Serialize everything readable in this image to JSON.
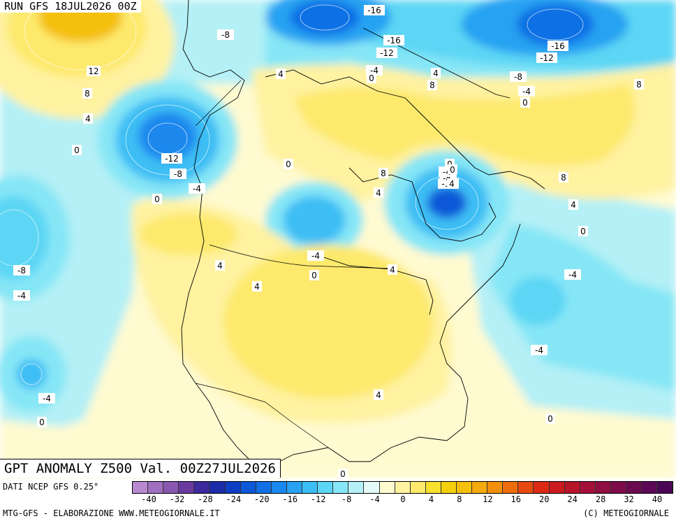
{
  "run_label": "RUN GFS 18JUL2026 00Z",
  "map_title": "GPT ANOMALY Z500 Val. 00Z27JUL2026",
  "source_label": "DATI NCEP GFS 0.25°",
  "credit_label": "MTG-GFS - ELABORAZIONE WWW.METEOGIORNALE.IT",
  "copyright_label": "(C) METEOGIORNALE",
  "colorbar": {
    "ticks": [
      "-40",
      "-32",
      "-28",
      "-24",
      "-20",
      "-16",
      "-12",
      "-8",
      "-4",
      "0",
      "4",
      "8",
      "12",
      "16",
      "20",
      "24",
      "28",
      "32",
      "40"
    ],
    "colors": [
      "#b88ad0",
      "#a070c0",
      "#8858b0",
      "#6a3aa0",
      "#3c2a9c",
      "#1c2ca8",
      "#0e3ec4",
      "#0c58d8",
      "#1070e4",
      "#1a88ee",
      "#28a2f2",
      "#3cbef4",
      "#5cd6f4",
      "#86e6f6",
      "#b4f0f6",
      "#e4faf8",
      "#fffad0",
      "#fff2a0",
      "#fde96c",
      "#f8e02e",
      "#f4d00c",
      "#f4c00c",
      "#f4aa0c",
      "#f2900c",
      "#ee6e0c",
      "#e64a10",
      "#dc2a14",
      "#cc1a1e",
      "#b8142a",
      "#a4103a",
      "#900e42",
      "#7e0c4a",
      "#6c0a50",
      "#5c0854",
      "#4c0656"
    ]
  },
  "contour_labels": [
    "-16",
    "-16",
    "-16",
    "-12",
    "-12",
    "-12",
    "-12",
    "-8",
    "-8",
    "-8",
    "-8",
    "-8",
    "-4",
    "-4",
    "-4",
    "-4",
    "-4",
    "-4",
    "-4",
    "-4",
    "-4",
    "0",
    "0",
    "0",
    "0",
    "0",
    "0",
    "0",
    "0",
    "0",
    "0",
    "0",
    "0",
    "4",
    "4",
    "4",
    "4",
    "4",
    "4",
    "4",
    "4",
    "4",
    "4",
    "4",
    "8",
    "8",
    "8",
    "8",
    "8",
    "8",
    "12"
  ],
  "icons": {
    "map": "geopotential-anomaly-map"
  }
}
